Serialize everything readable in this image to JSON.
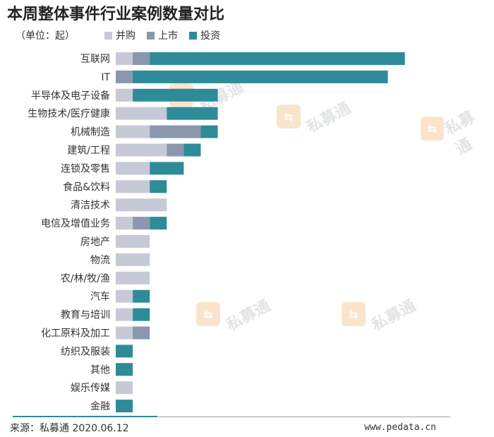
{
  "title": "本周整体事件行业案例数量对比",
  "unit_label": "（单位：起）",
  "legend": [
    {
      "label": "并购",
      "color": "#c6cad6"
    },
    {
      "label": "上市",
      "color": "#8a97ad"
    },
    {
      "label": "投资",
      "color": "#2e8b98"
    }
  ],
  "watermark": {
    "text": "私募通",
    "icon": "pedata-logo-icon"
  },
  "footer": {
    "source": "来源：私募通 2020.06.12",
    "website": "www.pedata.cn"
  },
  "chart_data": {
    "type": "bar",
    "orientation": "horizontal",
    "stacked": true,
    "grid": false,
    "legend_position": "top",
    "categories": [
      "互联网",
      "IT",
      "半导体及电子设备",
      "生物技术/医疗健康",
      "机械制造",
      "建筑/工程",
      "连锁及零售",
      "食品&饮料",
      "清洁技术",
      "电信及增值业务",
      "房地产",
      "物流",
      "农/林/牧/渔",
      "汽车",
      "教育与培训",
      "化工原料及加工",
      "纺织及服装",
      "其他",
      "娱乐传媒",
      "金融"
    ],
    "series": [
      {
        "name": "并购",
        "values": [
          1,
          0,
          1,
          3,
          2,
          3,
          2,
          2,
          3,
          1,
          2,
          2,
          2,
          1,
          1,
          1,
          0,
          0,
          1,
          0
        ]
      },
      {
        "name": "上市",
        "values": [
          1,
          1,
          0,
          0,
          3,
          1,
          0,
          0,
          0,
          1,
          0,
          0,
          0,
          0,
          0,
          1,
          0,
          0,
          0,
          0
        ]
      },
      {
        "name": "投资",
        "values": [
          15,
          15,
          5,
          3,
          1,
          1,
          2,
          1,
          0,
          1,
          0,
          0,
          0,
          1,
          1,
          0,
          1,
          1,
          0,
          1
        ]
      }
    ]
  }
}
